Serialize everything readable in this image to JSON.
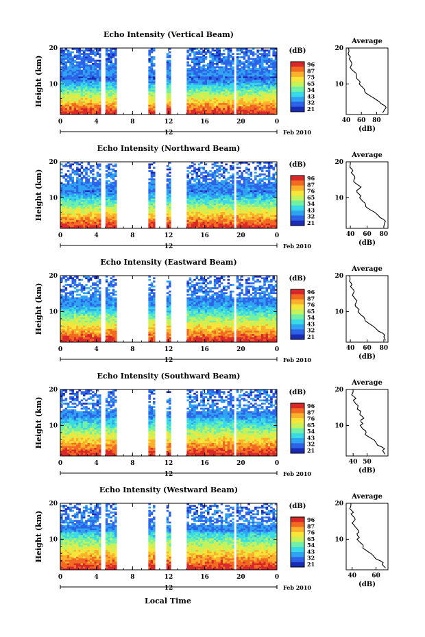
{
  "figure": {
    "xlabel": "Local Time",
    "date_label": "Feb 2010",
    "date_day": "12",
    "cbar_unit": "(dB)",
    "avg_title": "Average",
    "avg_xlabel": "(dB)",
    "ylabel": "Height (km)"
  },
  "colormap": [
    "#1a2bb5",
    "#2d63e8",
    "#2fa3f2",
    "#39d9e6",
    "#6ff0a6",
    "#c3f25a",
    "#f7e53a",
    "#fbb02c",
    "#f26a22",
    "#d8282a"
  ],
  "chart_data": [
    {
      "type": "heatmap",
      "title": "Echo Intensity (Vertical Beam)",
      "xlabel": "Local Time",
      "ylabel": "Height (km)",
      "xlim": [
        0,
        24
      ],
      "ylim": [
        1.5,
        20
      ],
      "xticks": [
        "0",
        "4",
        "8",
        "12",
        "16",
        "20",
        "0"
      ],
      "yticks": [
        "10",
        "20"
      ],
      "colorbar": {
        "label": "(dB)",
        "ticks": [
          "96",
          "87",
          "75",
          "65",
          "54",
          "43",
          "32",
          "21"
        ]
      },
      "data_gaps_hours": [
        [
          4.6,
          4.9
        ],
        [
          6.2,
          9.8
        ],
        [
          10.6,
          11.8
        ],
        [
          12.3,
          13.9
        ],
        [
          19.3,
          19.6
        ]
      ],
      "average_profile": {
        "title": "Average",
        "xlabel": "(dB)",
        "xlim": [
          40,
          95
        ],
        "xticks": [
          "40",
          "60",
          "80"
        ],
        "yticks": [
          "10",
          "20"
        ],
        "heights": [
          2,
          3,
          4,
          5,
          6,
          7,
          8,
          9,
          10,
          11,
          12,
          13,
          14,
          15,
          16,
          17,
          18,
          19,
          20
        ],
        "values": [
          88,
          92,
          90,
          84,
          76,
          70,
          64,
          62,
          58,
          56,
          54,
          52,
          48,
          46,
          47,
          45,
          43,
          44,
          42
        ]
      }
    },
    {
      "type": "heatmap",
      "title": "Echo Intensity (Northward Beam)",
      "xlabel": "Local Time",
      "ylabel": "Height (km)",
      "xlim": [
        0,
        24
      ],
      "ylim": [
        1.5,
        20
      ],
      "xticks": [
        "0",
        "4",
        "8",
        "12",
        "16",
        "20",
        "0"
      ],
      "yticks": [
        "10",
        "20"
      ],
      "colorbar": {
        "label": "(dB)",
        "ticks": [
          "96",
          "87",
          "76",
          "65",
          "54",
          "43",
          "32",
          "21"
        ]
      },
      "data_gaps_hours": [
        [
          4.6,
          4.9
        ],
        [
          6.2,
          9.8
        ],
        [
          10.6,
          11.8
        ],
        [
          12.3,
          13.9
        ],
        [
          19.3,
          19.6
        ]
      ],
      "average_profile": {
        "title": "Average",
        "xlabel": "(dB)",
        "xlim": [
          35,
          85
        ],
        "xticks": [
          "40",
          "60",
          "80"
        ],
        "yticks": [
          "10",
          "20"
        ],
        "heights": [
          2,
          3,
          4,
          5,
          6,
          7,
          8,
          9,
          10,
          11,
          12,
          13,
          14,
          15,
          16,
          17,
          18,
          19,
          20
        ],
        "values": [
          80,
          82,
          79,
          74,
          68,
          62,
          58,
          55,
          52,
          50,
          48,
          52,
          47,
          44,
          45,
          42,
          41,
          40,
          39
        ]
      }
    },
    {
      "type": "heatmap",
      "title": "Echo Intensity (Eastward Beam)",
      "xlabel": "Local Time",
      "ylabel": "Height (km)",
      "xlim": [
        0,
        24
      ],
      "ylim": [
        1.5,
        20
      ],
      "xticks": [
        "0",
        "4",
        "8",
        "12",
        "16",
        "20",
        "0"
      ],
      "yticks": [
        "10",
        "20"
      ],
      "colorbar": {
        "label": "(dB)",
        "ticks": [
          "96",
          "87",
          "76",
          "65",
          "54",
          "43",
          "32",
          "21"
        ]
      },
      "data_gaps_hours": [
        [
          4.6,
          4.9
        ],
        [
          6.2,
          9.8
        ],
        [
          10.6,
          11.8
        ],
        [
          12.3,
          13.9
        ],
        [
          19.3,
          19.6
        ]
      ],
      "average_profile": {
        "title": "Average",
        "xlabel": "(dB)",
        "xlim": [
          35,
          85
        ],
        "xticks": [
          "40",
          "60",
          "80"
        ],
        "yticks": [
          "10",
          "20"
        ],
        "heights": [
          2,
          3,
          4,
          5,
          6,
          7,
          8,
          9,
          10,
          11,
          12,
          13,
          14,
          15,
          16,
          17,
          18,
          19,
          20
        ],
        "values": [
          82,
          81,
          78,
          72,
          66,
          61,
          57,
          53,
          50,
          48,
          46,
          47,
          45,
          43,
          44,
          41,
          40,
          40,
          38
        ]
      }
    },
    {
      "type": "heatmap",
      "title": "Echo Intensity (Southward Beam)",
      "xlabel": "Local Time",
      "ylabel": "Height (km)",
      "xlim": [
        0,
        24
      ],
      "ylim": [
        1.5,
        20
      ],
      "xticks": [
        "0",
        "4",
        "8",
        "12",
        "16",
        "20",
        "0"
      ],
      "yticks": [
        "10",
        "20"
      ],
      "colorbar": {
        "label": "(dB)",
        "ticks": [
          "96",
          "87",
          "76",
          "65",
          "54",
          "43",
          "32",
          "21"
        ]
      },
      "data_gaps_hours": [
        [
          4.6,
          4.9
        ],
        [
          6.2,
          9.8
        ],
        [
          10.6,
          11.8
        ],
        [
          12.3,
          13.9
        ],
        [
          19.3,
          19.6
        ]
      ],
      "average_profile": {
        "title": "Average",
        "xlabel": "(dB)",
        "xlim": [
          35,
          65
        ],
        "xticks": [
          "40",
          "50"
        ],
        "yticks": [
          "10",
          "20"
        ],
        "heights": [
          2,
          3,
          4,
          5,
          6,
          7,
          8,
          9,
          10,
          11,
          12,
          13,
          14,
          15,
          16,
          17,
          18,
          19,
          20
        ],
        "values": [
          63,
          62,
          60,
          57,
          54,
          51,
          49,
          47,
          46,
          45,
          48,
          44,
          46,
          43,
          42,
          41,
          40,
          40,
          39
        ]
      }
    },
    {
      "type": "heatmap",
      "title": "Echo Intensity (Westward Beam)",
      "xlabel": "Local Time",
      "ylabel": "Height (km)",
      "xlim": [
        0,
        24
      ],
      "ylim": [
        1.5,
        20
      ],
      "xticks": [
        "0",
        "4",
        "8",
        "12",
        "16",
        "20",
        "0"
      ],
      "yticks": [
        "10",
        "20"
      ],
      "colorbar": {
        "label": "(dB)",
        "ticks": [
          "96",
          "87",
          "76",
          "65",
          "54",
          "43",
          "32",
          "21"
        ]
      },
      "data_gaps_hours": [
        [
          4.6,
          4.9
        ],
        [
          6.2,
          9.8
        ],
        [
          10.6,
          11.8
        ],
        [
          12.3,
          13.9
        ],
        [
          19.3,
          19.6
        ]
      ],
      "average_profile": {
        "title": "Average",
        "xlabel": "(dB)",
        "xlim": [
          35,
          70
        ],
        "xticks": [
          "40",
          "60"
        ],
        "yticks": [
          "10",
          "20"
        ],
        "heights": [
          2,
          3,
          4,
          5,
          6,
          7,
          8,
          9,
          10,
          11,
          12,
          13,
          14,
          15,
          16,
          17,
          18,
          19,
          20
        ],
        "values": [
          68,
          66,
          63,
          59,
          55,
          52,
          49,
          47,
          45,
          44,
          46,
          43,
          42,
          41,
          42,
          40,
          39,
          39,
          38
        ]
      }
    }
  ]
}
